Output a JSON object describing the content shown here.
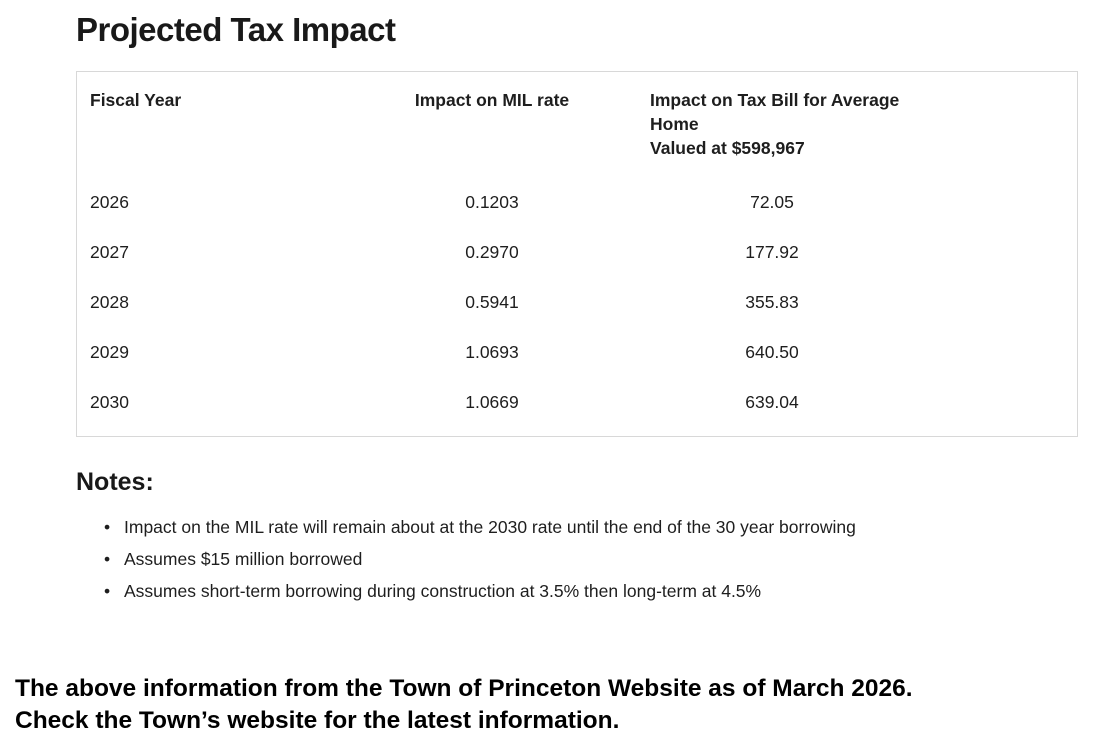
{
  "page": {
    "title": "Projected Tax Impact"
  },
  "table": {
    "headers": {
      "fiscal_year": "Fiscal Year",
      "mil_rate": "Impact on MIL rate",
      "tax_bill_line1": "Impact on Tax Bill for Average Home",
      "tax_bill_line2": "Valued at $598,967"
    },
    "rows": [
      {
        "fiscal_year": "2026",
        "mil_rate": "0.1203",
        "tax_bill": "72.05"
      },
      {
        "fiscal_year": "2027",
        "mil_rate": "0.2970",
        "tax_bill": "177.92"
      },
      {
        "fiscal_year": "2028",
        "mil_rate": "0.5941",
        "tax_bill": "355.83"
      },
      {
        "fiscal_year": "2029",
        "mil_rate": "1.0693",
        "tax_bill": "640.50"
      },
      {
        "fiscal_year": "2030",
        "mil_rate": "1.0669",
        "tax_bill": "639.04"
      }
    ]
  },
  "notes": {
    "heading": "Notes:",
    "items": [
      "Impact on the MIL rate will remain about at the 2030 rate until the end of the 30 year borrowing",
      "Assumes $15 million borrowed",
      "Assumes short-term borrowing during construction at 3.5% then long-term at 4.5%"
    ]
  },
  "footer": {
    "line1": "The above information from the Town of Princeton Website as of March 2026.",
    "line2": "Check the Town’s website for the latest information."
  },
  "colors": {
    "text": "#1e1e1e",
    "table_border": "#d8d8d8",
    "footer_text": "#000000"
  },
  "chart_data": {
    "type": "table",
    "title": "Projected Tax Impact",
    "columns": [
      "Fiscal Year",
      "Impact on MIL rate",
      "Impact on Tax Bill for Average Home Valued at $598,967"
    ],
    "rows": [
      [
        2026,
        0.1203,
        72.05
      ],
      [
        2027,
        0.297,
        177.92
      ],
      [
        2028,
        0.5941,
        355.83
      ],
      [
        2029,
        1.0693,
        640.5
      ],
      [
        2030,
        1.0669,
        639.04
      ]
    ]
  }
}
